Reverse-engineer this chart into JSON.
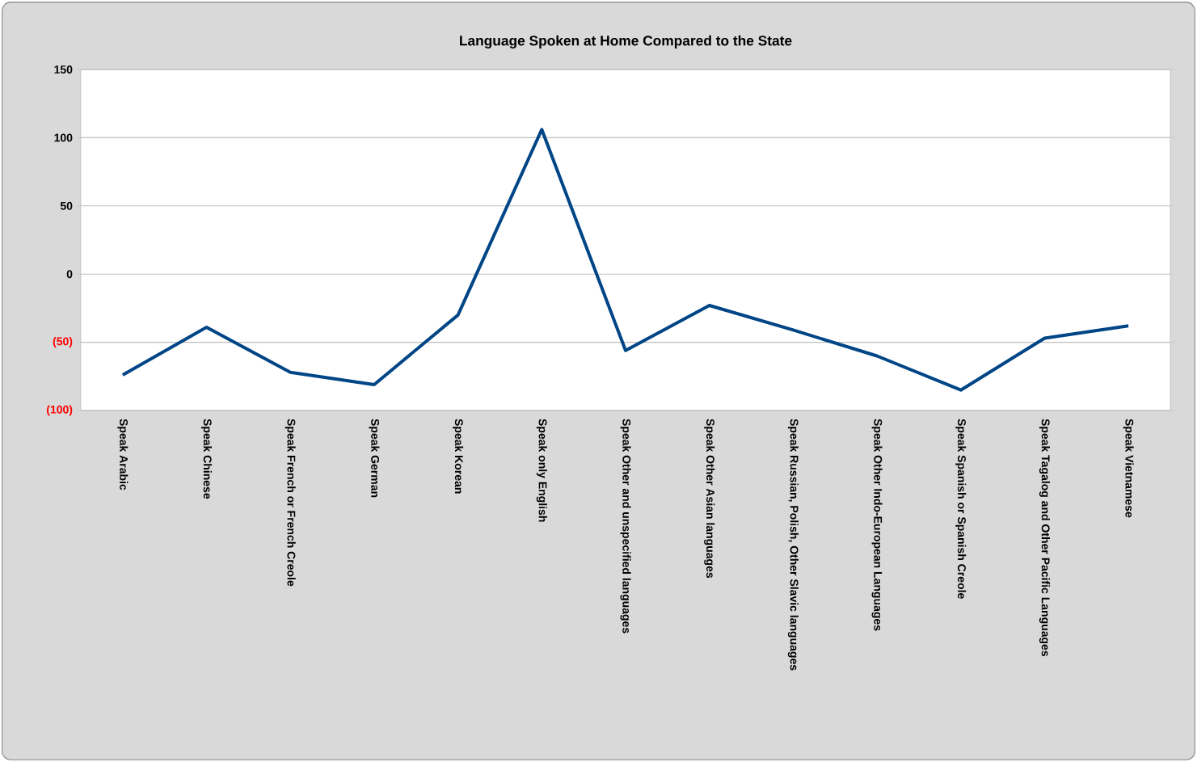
{
  "chart_data": {
    "type": "line",
    "title": "Language Spoken at Home Compared to the State",
    "categories": [
      "Speak Arabic",
      "Speak Chinese",
      "Speak French or French Creole",
      "Speak German",
      "Speak Korean",
      "Speak only English",
      "Speak Other and unspecified languages",
      "Speak Other Asian languages",
      "Speak Russian, Polish, Other Slavic languages",
      "Speak Other Indo-European Languages",
      "Speak Spanish or Spanish Creole",
      "Speak Tagalog and Other Pacific Languages",
      "Speak Vietnamese"
    ],
    "series": [
      {
        "color": "#004586",
        "values": [
          -74,
          -39,
          -72,
          -81,
          -30,
          106,
          -56,
          -23,
          -41,
          -60,
          -85,
          -47,
          -38
        ]
      }
    ],
    "ylim": [
      -100,
      150
    ],
    "yticks": [
      {
        "value": -100,
        "label": "(100)"
      },
      {
        "value": -50,
        "label": "(50)"
      },
      0,
      50,
      100,
      150
    ],
    "grid": "y",
    "line_style": "solid"
  }
}
